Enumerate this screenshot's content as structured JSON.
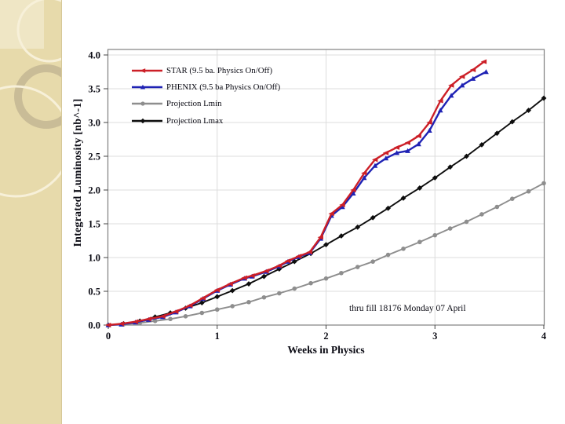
{
  "slide": {
    "background": "#ffffff",
    "sidebar": {
      "base_color": "#e7daab",
      "square_color": "#efe6c5",
      "ring_color": "#c9bc97",
      "cream_color": "#f7f0d9"
    }
  },
  "chart_data": {
    "type": "line",
    "title": "",
    "xlabel": "Weeks in Physics",
    "ylabel": "Integrated Luminosity [nb^-1]",
    "annotation": "thru fill 18176  Monday 07 April",
    "xlim": [
      0,
      4
    ],
    "ylim": [
      0,
      4.0
    ],
    "grid": "on",
    "legend_position": "inside-top-left",
    "xticks": [
      "0",
      "1",
      "2",
      "3",
      "4"
    ],
    "yticks": [
      "0.0",
      "0.5",
      "1.0",
      "1.5",
      "2.0",
      "2.5",
      "3.0",
      "3.5",
      "4.0"
    ],
    "axis_color": "#808080",
    "gridline_color": "#dcdcdc",
    "series": [
      {
        "name": "STAR (9.5 ba. Physics On/Off)",
        "color": "#cc1f27",
        "marker": "triangle-left",
        "x": [
          0,
          0.12,
          0.25,
          0.37,
          0.5,
          0.62,
          0.75,
          0.87,
          1,
          1.12,
          1.25,
          1.32,
          1.45,
          1.57,
          1.65,
          1.75,
          1.85,
          1.95,
          2.05,
          2.15,
          2.25,
          2.35,
          2.45,
          2.55,
          2.65,
          2.75,
          2.85,
          2.95,
          3.05,
          3.15,
          3.25,
          3.35,
          3.45
        ],
        "y": [
          0,
          0.02,
          0.05,
          0.09,
          0.13,
          0.2,
          0.29,
          0.4,
          0.52,
          0.61,
          0.7,
          0.73,
          0.8,
          0.88,
          0.95,
          1.02,
          1.08,
          1.3,
          1.65,
          1.78,
          2.0,
          2.25,
          2.45,
          2.55,
          2.63,
          2.7,
          2.8,
          3.0,
          3.32,
          3.55,
          3.68,
          3.78,
          3.9
        ]
      },
      {
        "name": "PHENIX (9.5 ba Physics On/Off)",
        "color": "#1f22b4",
        "marker": "triangle-up",
        "x": [
          0,
          0.12,
          0.25,
          0.37,
          0.5,
          0.62,
          0.75,
          0.87,
          1,
          1.12,
          1.25,
          1.32,
          1.45,
          1.57,
          1.65,
          1.75,
          1.85,
          1.95,
          2.05,
          2.15,
          2.25,
          2.35,
          2.45,
          2.55,
          2.65,
          2.75,
          2.85,
          2.95,
          3.05,
          3.15,
          3.25,
          3.35,
          3.47
        ],
        "y": [
          0,
          0.01,
          0.04,
          0.08,
          0.12,
          0.19,
          0.28,
          0.39,
          0.51,
          0.6,
          0.69,
          0.72,
          0.79,
          0.87,
          0.94,
          1.01,
          1.07,
          1.28,
          1.62,
          1.75,
          1.95,
          2.18,
          2.36,
          2.47,
          2.55,
          2.58,
          2.68,
          2.88,
          3.18,
          3.4,
          3.55,
          3.65,
          3.75
        ]
      },
      {
        "name": "Projection Lmin",
        "color": "#8e8e8e",
        "marker": "circle",
        "x": [
          0,
          0.14,
          0.29,
          0.43,
          0.57,
          0.71,
          0.86,
          1,
          1.14,
          1.29,
          1.43,
          1.57,
          1.71,
          1.86,
          2,
          2.14,
          2.29,
          2.43,
          2.57,
          2.71,
          2.86,
          3,
          3.14,
          3.29,
          3.43,
          3.57,
          3.71,
          3.86,
          4
        ],
        "y": [
          0,
          0.01,
          0.03,
          0.06,
          0.09,
          0.13,
          0.18,
          0.23,
          0.28,
          0.34,
          0.41,
          0.47,
          0.54,
          0.62,
          0.69,
          0.77,
          0.86,
          0.94,
          1.04,
          1.13,
          1.23,
          1.33,
          1.43,
          1.53,
          1.64,
          1.75,
          1.87,
          1.98,
          2.1
        ]
      },
      {
        "name": "Projection Lmax",
        "color": "#0d0d0d",
        "marker": "diamond",
        "x": [
          0,
          0.14,
          0.29,
          0.43,
          0.57,
          0.71,
          0.86,
          1,
          1.14,
          1.29,
          1.43,
          1.57,
          1.71,
          1.86,
          2,
          2.14,
          2.29,
          2.43,
          2.57,
          2.71,
          2.86,
          3,
          3.14,
          3.29,
          3.43,
          3.57,
          3.71,
          3.86,
          4
        ],
        "y": [
          0,
          0.02,
          0.06,
          0.12,
          0.18,
          0.25,
          0.33,
          0.42,
          0.51,
          0.61,
          0.72,
          0.83,
          0.94,
          1.06,
          1.19,
          1.32,
          1.45,
          1.59,
          1.73,
          1.88,
          2.03,
          2.18,
          2.34,
          2.5,
          2.67,
          2.84,
          3.01,
          3.18,
          3.36
        ]
      }
    ]
  }
}
